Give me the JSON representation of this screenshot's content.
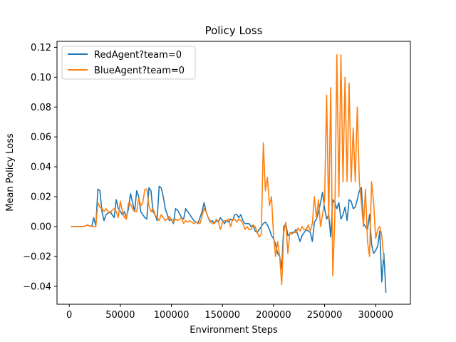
{
  "chart_data": {
    "type": "line",
    "title": "Policy Loss",
    "xlabel": "Environment Steps",
    "ylabel": "Mean Policy Loss",
    "xlim": [
      -12000,
      334000
    ],
    "ylim": [
      -0.052,
      0.124
    ],
    "xticks": [
      0,
      50000,
      100000,
      150000,
      200000,
      250000,
      300000
    ],
    "xtick_labels": [
      "0",
      "50000",
      "100000",
      "150000",
      "200000",
      "250000",
      "300000"
    ],
    "yticks": [
      -0.04,
      -0.02,
      0.0,
      0.02,
      0.04,
      0.06,
      0.08,
      0.1,
      0.12
    ],
    "ytick_labels": [
      "−0.04",
      "−0.02",
      "0.00",
      "0.02",
      "0.04",
      "0.06",
      "0.08",
      "0.10",
      "0.12"
    ],
    "grid": false,
    "legend_position": "top-left",
    "series": [
      {
        "name": "RedAgent?team=0",
        "color": "#1f77b4",
        "points": [
          [
            2000,
            0.0
          ],
          [
            6000,
            0.0
          ],
          [
            10000,
            0.0
          ],
          [
            14000,
            0.0
          ],
          [
            18000,
            0.001
          ],
          [
            22000,
            0.0
          ],
          [
            24000,
            0.006
          ],
          [
            26000,
            0.0
          ],
          [
            28000,
            0.025
          ],
          [
            30000,
            0.024
          ],
          [
            32000,
            0.01
          ],
          [
            34000,
            0.004
          ],
          [
            36000,
            0.008
          ],
          [
            40000,
            0.01
          ],
          [
            44000,
            0.006
          ],
          [
            46000,
            0.018
          ],
          [
            48000,
            0.012
          ],
          [
            52000,
            0.008
          ],
          [
            54000,
            0.01
          ],
          [
            56000,
            0.006
          ],
          [
            58000,
            0.012
          ],
          [
            60000,
            0.022
          ],
          [
            62000,
            0.016
          ],
          [
            64000,
            0.01
          ],
          [
            66000,
            0.024
          ],
          [
            68000,
            0.02
          ],
          [
            70000,
            0.01
          ],
          [
            72000,
            0.008
          ],
          [
            74000,
            0.006
          ],
          [
            76000,
            0.005
          ],
          [
            78000,
            0.026
          ],
          [
            80000,
            0.024
          ],
          [
            82000,
            0.01
          ],
          [
            84000,
            0.008
          ],
          [
            86000,
            0.004
          ],
          [
            88000,
            0.027
          ],
          [
            90000,
            0.026
          ],
          [
            92000,
            0.02
          ],
          [
            94000,
            0.012
          ],
          [
            96000,
            0.008
          ],
          [
            98000,
            0.004
          ],
          [
            100000,
            0.005
          ],
          [
            102000,
            0.002
          ],
          [
            104000,
            0.012
          ],
          [
            106000,
            0.011
          ],
          [
            110000,
            0.006
          ],
          [
            112000,
            0.005
          ],
          [
            114000,
            0.012
          ],
          [
            118000,
            0.008
          ],
          [
            122000,
            0.004
          ],
          [
            126000,
            0.002
          ],
          [
            130000,
            0.01
          ],
          [
            132000,
            0.016
          ],
          [
            134000,
            0.01
          ],
          [
            136000,
            0.006
          ],
          [
            138000,
            0.003
          ],
          [
            140000,
            0.004
          ],
          [
            142000,
            0.002
          ],
          [
            144000,
            0.004
          ],
          [
            146000,
            0.003
          ],
          [
            148000,
            0.006
          ],
          [
            150000,
            0.004
          ],
          [
            152000,
            0.002
          ],
          [
            154000,
            0.004
          ],
          [
            156000,
            0.003
          ],
          [
            158000,
            0.005
          ],
          [
            160000,
            0.004
          ],
          [
            162000,
            0.008
          ],
          [
            164000,
            0.008
          ],
          [
            166000,
            0.006
          ],
          [
            168000,
            0.008
          ],
          [
            170000,
            0.004
          ],
          [
            172000,
            0.002
          ],
          [
            174000,
            0.002
          ],
          [
            176000,
            0.002
          ],
          [
            178000,
            0.0
          ],
          [
            180000,
            0.001
          ],
          [
            182000,
            -0.003
          ],
          [
            184000,
            -0.004
          ],
          [
            186000,
            -0.002
          ],
          [
            188000,
            0.0
          ],
          [
            190000,
            0.002
          ],
          [
            192000,
            0.003
          ],
          [
            194000,
            0.001
          ],
          [
            196000,
            -0.002
          ],
          [
            198000,
            -0.006
          ],
          [
            200000,
            -0.008
          ],
          [
            202000,
            -0.012
          ],
          [
            204000,
            -0.018
          ],
          [
            206000,
            -0.02
          ],
          [
            208000,
            -0.028
          ],
          [
            210000,
            0.0
          ],
          [
            212000,
            0.002
          ],
          [
            214000,
            -0.006
          ],
          [
            216000,
            -0.005
          ],
          [
            218000,
            -0.004
          ],
          [
            220000,
            -0.004
          ],
          [
            222000,
            -0.002
          ],
          [
            224000,
            -0.006
          ],
          [
            226000,
            -0.01
          ],
          [
            228000,
            -0.006
          ],
          [
            230000,
            -0.004
          ],
          [
            232000,
            -0.002
          ],
          [
            234000,
            -0.003
          ],
          [
            236000,
            -0.004
          ],
          [
            238000,
            -0.01
          ],
          [
            240000,
            0.003
          ],
          [
            242000,
            0.005
          ],
          [
            244000,
            0.01
          ],
          [
            246000,
            0.016
          ],
          [
            248000,
            0.023
          ],
          [
            250000,
            0.012
          ],
          [
            252000,
            0.005
          ],
          [
            254000,
            0.008
          ],
          [
            256000,
            -0.007
          ],
          [
            258000,
            0.018
          ],
          [
            260000,
            0.016
          ],
          [
            262000,
            0.012
          ],
          [
            264000,
            0.016
          ],
          [
            266000,
            0.005
          ],
          [
            268000,
            0.008
          ],
          [
            270000,
            0.013
          ],
          [
            272000,
            0.004
          ],
          [
            274000,
            0.018
          ],
          [
            276000,
            0.017
          ],
          [
            278000,
            0.012
          ],
          [
            280000,
            0.013
          ],
          [
            282000,
            0.018
          ],
          [
            284000,
            0.024
          ],
          [
            286000,
            0.026
          ],
          [
            288000,
            0.002
          ],
          [
            290000,
            0.0
          ],
          [
            292000,
            -0.002
          ],
          [
            294000,
            0.008
          ],
          [
            296000,
            -0.012
          ],
          [
            298000,
            -0.018
          ],
          [
            300000,
            -0.016
          ],
          [
            302000,
            -0.013
          ],
          [
            304000,
            -0.003
          ],
          [
            306000,
            -0.037
          ],
          [
            308000,
            -0.018
          ],
          [
            310000,
            -0.044
          ]
        ]
      },
      {
        "name": "BlueAgent?team=0",
        "color": "#ff7f0e",
        "points": [
          [
            2000,
            0.0
          ],
          [
            6000,
            0.0
          ],
          [
            10000,
            0.0
          ],
          [
            14000,
            0.0
          ],
          [
            18000,
            0.001
          ],
          [
            22000,
            0.0
          ],
          [
            24000,
            0.0
          ],
          [
            26000,
            0.0
          ],
          [
            28000,
            0.016
          ],
          [
            30000,
            0.013
          ],
          [
            32000,
            0.012
          ],
          [
            34000,
            0.01
          ],
          [
            36000,
            0.012
          ],
          [
            38000,
            0.01
          ],
          [
            40000,
            0.009
          ],
          [
            42000,
            0.011
          ],
          [
            44000,
            0.012
          ],
          [
            46000,
            0.01
          ],
          [
            48000,
            0.006
          ],
          [
            50000,
            0.017
          ],
          [
            52000,
            0.01
          ],
          [
            54000,
            0.006
          ],
          [
            56000,
            0.005
          ],
          [
            58000,
            0.016
          ],
          [
            60000,
            0.015
          ],
          [
            62000,
            0.012
          ],
          [
            64000,
            0.01
          ],
          [
            66000,
            0.01
          ],
          [
            68000,
            0.019
          ],
          [
            70000,
            0.014
          ],
          [
            72000,
            0.016
          ],
          [
            74000,
            0.025
          ],
          [
            76000,
            0.025
          ],
          [
            78000,
            0.014
          ],
          [
            80000,
            0.01
          ],
          [
            82000,
            0.012
          ],
          [
            84000,
            0.008
          ],
          [
            86000,
            0.006
          ],
          [
            88000,
            0.004
          ],
          [
            90000,
            0.008
          ],
          [
            92000,
            0.006
          ],
          [
            94000,
            0.004
          ],
          [
            96000,
            0.005
          ],
          [
            98000,
            0.007
          ],
          [
            100000,
            0.004
          ],
          [
            102000,
            0.003
          ],
          [
            104000,
            0.005
          ],
          [
            106000,
            0.004
          ],
          [
            110000,
            0.006
          ],
          [
            112000,
            0.002
          ],
          [
            114000,
            0.004
          ],
          [
            116000,
            0.003
          ],
          [
            118000,
            0.004
          ],
          [
            122000,
            0.002
          ],
          [
            124000,
            0.003
          ],
          [
            128000,
            0.002
          ],
          [
            132000,
            0.012
          ],
          [
            134000,
            0.01
          ],
          [
            136000,
            0.006
          ],
          [
            138000,
            0.004
          ],
          [
            140000,
            0.002
          ],
          [
            142000,
            0.002
          ],
          [
            144000,
            0.005
          ],
          [
            146000,
            0.003
          ],
          [
            148000,
            -0.002
          ],
          [
            150000,
            0.003
          ],
          [
            152000,
            0.004
          ],
          [
            154000,
            0.004
          ],
          [
            156000,
            0.005
          ],
          [
            158000,
            0.0
          ],
          [
            160000,
            0.005
          ],
          [
            162000,
            0.005
          ],
          [
            164000,
            0.003
          ],
          [
            166000,
            0.005
          ],
          [
            168000,
            0.004
          ],
          [
            170000,
            0.002
          ],
          [
            172000,
            -0.002
          ],
          [
            174000,
            0.0
          ],
          [
            176000,
            -0.002
          ],
          [
            178000,
            -0.002
          ],
          [
            180000,
            0.001
          ],
          [
            182000,
            0.0
          ],
          [
            184000,
            -0.004
          ],
          [
            186000,
            -0.007
          ],
          [
            188000,
            -0.005
          ],
          [
            190000,
            0.056
          ],
          [
            192000,
            0.024
          ],
          [
            194000,
            0.033
          ],
          [
            196000,
            0.014
          ],
          [
            198000,
            0.02
          ],
          [
            200000,
            -0.006
          ],
          [
            202000,
            -0.02
          ],
          [
            204000,
            -0.01
          ],
          [
            206000,
            -0.02
          ],
          [
            208000,
            -0.039
          ],
          [
            210000,
            -0.004
          ],
          [
            212000,
            0.003
          ],
          [
            214000,
            -0.018
          ],
          [
            216000,
            -0.004
          ],
          [
            218000,
            -0.005
          ],
          [
            220000,
            -0.004
          ],
          [
            222000,
            -0.004
          ],
          [
            224000,
            -0.001
          ],
          [
            226000,
            -0.003
          ],
          [
            228000,
            0.0
          ],
          [
            230000,
            -0.002
          ],
          [
            232000,
            -0.002
          ],
          [
            234000,
            0.001
          ],
          [
            236000,
            -0.003
          ],
          [
            238000,
            0.002
          ],
          [
            240000,
            0.02
          ],
          [
            242000,
            0.006
          ],
          [
            244000,
            0.018
          ],
          [
            246000,
            0.0
          ],
          [
            248000,
            0.008
          ],
          [
            250000,
            0.018
          ],
          [
            252000,
            0.088
          ],
          [
            254000,
            0.005
          ],
          [
            256000,
            0.093
          ],
          [
            258000,
            -0.033
          ],
          [
            260000,
            0.005
          ],
          [
            262000,
            0.115
          ],
          [
            264000,
            0.02
          ],
          [
            266000,
            0.115
          ],
          [
            268000,
            0.03
          ],
          [
            270000,
            0.1
          ],
          [
            272000,
            0.03
          ],
          [
            274000,
            0.096
          ],
          [
            276000,
            0.03
          ],
          [
            278000,
            0.066
          ],
          [
            280000,
            0.03
          ],
          [
            282000,
            0.08
          ],
          [
            284000,
            0.03
          ],
          [
            286000,
            0.016
          ],
          [
            288000,
            0.0
          ],
          [
            290000,
            0.025
          ],
          [
            292000,
            -0.01
          ],
          [
            294000,
            -0.02
          ],
          [
            296000,
            0.03
          ],
          [
            298000,
            0.016
          ],
          [
            300000,
            -0.008
          ],
          [
            302000,
            -0.002
          ],
          [
            304000,
            0.0
          ],
          [
            306000,
            -0.006
          ],
          [
            308000,
            -0.022
          ]
        ]
      }
    ]
  }
}
